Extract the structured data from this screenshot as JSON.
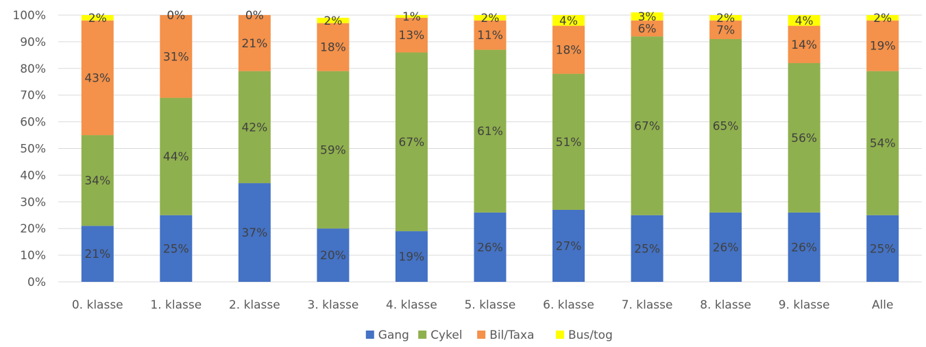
{
  "chart_data": {
    "type": "bar",
    "stacked": true,
    "percent_stacked": true,
    "categories": [
      "0. klasse",
      "1. klasse",
      "2. klasse",
      "3. klasse",
      "4. klasse",
      "5. klasse",
      "6. klasse",
      "7. klasse",
      "8. klasse",
      "9. klasse",
      "Alle"
    ],
    "series": [
      {
        "name": "Gang",
        "color": "#4472C4",
        "values": [
          21,
          25,
          37,
          20,
          19,
          26,
          27,
          25,
          26,
          26,
          25
        ]
      },
      {
        "name": "Cykel",
        "color": "#8FB04E",
        "values": [
          34,
          44,
          42,
          59,
          67,
          61,
          51,
          67,
          65,
          56,
          54
        ]
      },
      {
        "name": "Bil/Taxa",
        "color": "#F4914A",
        "values": [
          43,
          31,
          21,
          18,
          13,
          11,
          18,
          6,
          7,
          14,
          19
        ]
      },
      {
        "name": "Bus/tog",
        "color": "#FFFF00",
        "values": [
          2,
          0,
          0,
          2,
          1,
          2,
          4,
          3,
          2,
          4,
          2
        ]
      }
    ],
    "label_suffix": "%",
    "yticks": [
      "0%",
      "10%",
      "20%",
      "30%",
      "40%",
      "50%",
      "60%",
      "70%",
      "80%",
      "90%",
      "100%"
    ],
    "ylim": [
      0,
      100
    ],
    "grid": true,
    "legend_position": "bottom"
  }
}
